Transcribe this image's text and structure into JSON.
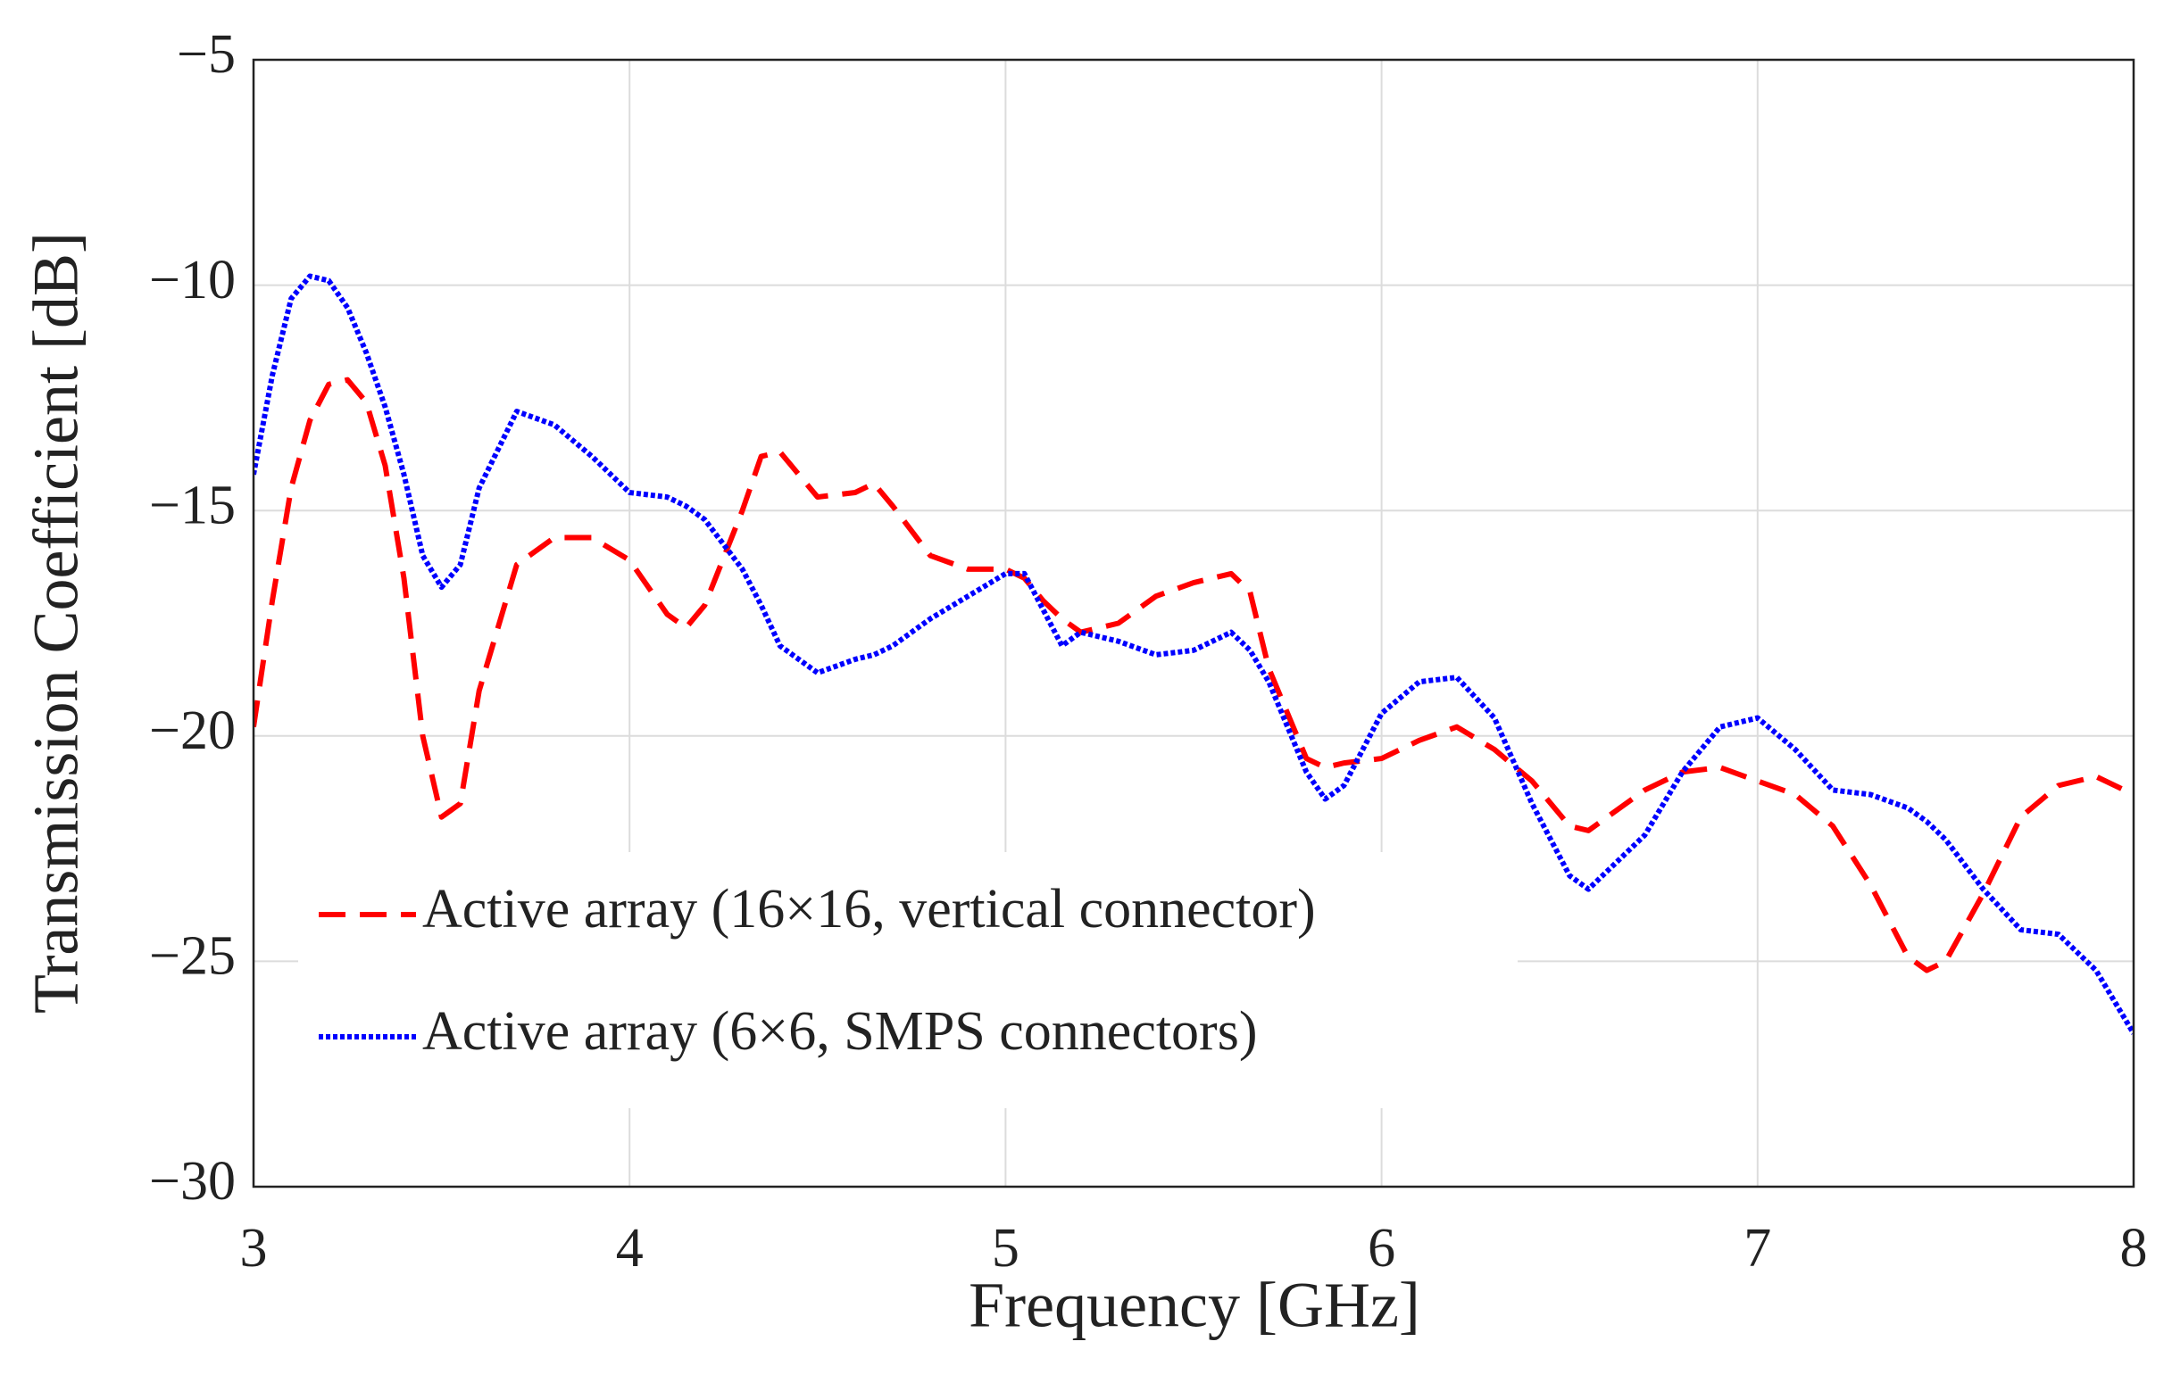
{
  "chart_data": {
    "type": "line",
    "xlabel": "Frequency [GHz]",
    "ylabel": "Transmission Coefficient [dB]",
    "x": [
      3.0,
      3.05,
      3.1,
      3.15,
      3.2,
      3.25,
      3.3,
      3.35,
      3.4,
      3.45,
      3.5,
      3.55,
      3.6,
      3.7,
      3.8,
      3.9,
      4.0,
      4.1,
      4.15,
      4.2,
      4.3,
      4.35,
      4.4,
      4.5,
      4.6,
      4.65,
      4.7,
      4.8,
      4.9,
      5.0,
      5.05,
      5.1,
      5.15,
      5.2,
      5.3,
      5.4,
      5.5,
      5.6,
      5.65,
      5.7,
      5.8,
      5.85,
      5.9,
      6.0,
      6.1,
      6.2,
      6.3,
      6.4,
      6.5,
      6.55,
      6.6,
      6.7,
      6.8,
      6.9,
      7.0,
      7.1,
      7.2,
      7.3,
      7.4,
      7.45,
      7.5,
      7.6,
      7.7,
      7.8,
      7.9,
      8.0
    ],
    "series": [
      {
        "name": "Active array (16×16, vertical connector)",
        "color": "#ff0000",
        "dash": "dashed",
        "values": [
          -19.8,
          -17,
          -14.5,
          -13,
          -12.2,
          -12.1,
          -12.6,
          -14,
          -16.5,
          -20,
          -21.8,
          -21.5,
          -19,
          -16.2,
          -15.6,
          -15.6,
          -16.1,
          -17.3,
          -17.6,
          -17.1,
          -15,
          -13.8,
          -13.7,
          -14.7,
          -14.6,
          -14.4,
          -14.9,
          -16,
          -16.3,
          -16.3,
          -16.5,
          -17.0,
          -17.4,
          -17.7,
          -17.5,
          -16.9,
          -16.6,
          -16.4,
          -16.8,
          -18.5,
          -20.5,
          -20.7,
          -20.6,
          -20.5,
          -20.1,
          -19.8,
          -20.3,
          -21,
          -22,
          -22.1,
          -21.8,
          -21.2,
          -20.8,
          -20.7,
          -21,
          -21.3,
          -22,
          -23.3,
          -24.9,
          -25.2,
          -25,
          -23.5,
          -21.8,
          -21.1,
          -20.9,
          -21.3
        ]
      },
      {
        "name": "Active array (6×6, SMPS connectors)",
        "color": "#0000ff",
        "dash": "dotted",
        "values": [
          -14.2,
          -12,
          -10.3,
          -9.8,
          -9.9,
          -10.5,
          -11.5,
          -12.7,
          -14.2,
          -16.0,
          -16.7,
          -16.2,
          -14.5,
          -12.8,
          -13.1,
          -13.8,
          -14.6,
          -14.7,
          -14.9,
          -15.2,
          -16.3,
          -17.1,
          -18,
          -18.6,
          -18.3,
          -18.2,
          -18.0,
          -17.4,
          -16.9,
          -16.4,
          -16.4,
          -17.2,
          -18.0,
          -17.7,
          -17.9,
          -18.2,
          -18.1,
          -17.7,
          -18.1,
          -18.8,
          -20.8,
          -21.4,
          -21.1,
          -19.5,
          -18.8,
          -18.7,
          -19.6,
          -21.5,
          -23.1,
          -23.4,
          -23.0,
          -22.2,
          -20.8,
          -19.8,
          -19.6,
          -20.3,
          -21.2,
          -21.3,
          -21.6,
          -21.9,
          -22.3,
          -23.4,
          -24.3,
          -24.4,
          -25.2,
          -26.6
        ]
      }
    ],
    "xlim": [
      3,
      8
    ],
    "xticks": [
      3,
      4,
      5,
      6,
      7,
      8
    ],
    "ylim": [
      -30,
      -5
    ],
    "yticks": [
      {
        "value": -30,
        "label": "−30"
      },
      {
        "value": -25,
        "label": "−25"
      },
      {
        "value": -20,
        "label": "−20"
      },
      {
        "value": -15,
        "label": "−15"
      },
      {
        "value": -10,
        "label": "−10"
      },
      {
        "value": -5,
        "label": "−5"
      }
    ],
    "grid": true,
    "legend": "lower left"
  }
}
